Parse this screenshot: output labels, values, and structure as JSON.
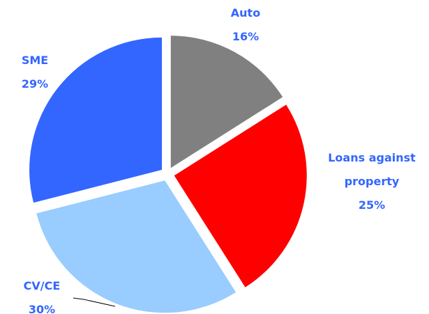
{
  "chart_data": {
    "type": "pie",
    "categories": [
      "Auto",
      "Loans against property",
      "CV/CE",
      "SME"
    ],
    "values": [
      16,
      25,
      30,
      29
    ],
    "value_labels": [
      "16%",
      "25%",
      "30%",
      "29%"
    ],
    "colors": [
      "#808080",
      "#ff0000",
      "#99ccff",
      "#3366ff"
    ]
  }
}
